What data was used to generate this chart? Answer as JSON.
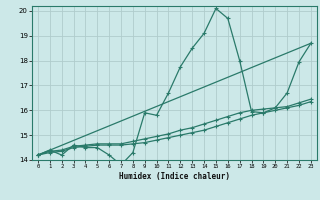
{
  "title": "",
  "xlabel": "Humidex (Indice chaleur)",
  "bg_color": "#cce8e8",
  "grid_color": "#b0cccc",
  "line_color": "#2a7a6a",
  "ylim": [
    14,
    20.2
  ],
  "xlim": [
    -0.5,
    23.5
  ],
  "yticks": [
    14,
    15,
    16,
    17,
    18,
    19,
    20
  ],
  "xticks": [
    0,
    1,
    2,
    3,
    4,
    5,
    6,
    7,
    8,
    9,
    10,
    11,
    12,
    13,
    14,
    15,
    16,
    17,
    18,
    19,
    20,
    21,
    22,
    23
  ],
  "series": [
    {
      "x": [
        0,
        1,
        2,
        3,
        4,
        5,
        6,
        7,
        8,
        9,
        10,
        11,
        12,
        13,
        14,
        15,
        16,
        17,
        18,
        19,
        20,
        21,
        22,
        23
      ],
      "y": [
        14.2,
        14.4,
        14.2,
        14.6,
        14.5,
        14.5,
        14.2,
        13.8,
        14.3,
        15.9,
        15.8,
        16.7,
        17.75,
        18.5,
        19.1,
        20.1,
        19.7,
        18.0,
        15.95,
        15.9,
        16.1,
        16.7,
        17.95,
        18.7
      ],
      "has_markers": true
    },
    {
      "x": [
        0,
        23
      ],
      "y": [
        14.2,
        18.7
      ],
      "has_markers": false
    },
    {
      "x": [
        0,
        1,
        2,
        3,
        4,
        5,
        6,
        7,
        8,
        9,
        10,
        11,
        12,
        13,
        14,
        15,
        16,
        17,
        18,
        19,
        20,
        21,
        22,
        23
      ],
      "y": [
        14.2,
        14.3,
        14.35,
        14.5,
        14.55,
        14.6,
        14.6,
        14.6,
        14.65,
        14.7,
        14.8,
        14.9,
        15.0,
        15.1,
        15.2,
        15.35,
        15.5,
        15.65,
        15.8,
        15.9,
        16.0,
        16.1,
        16.2,
        16.35
      ],
      "has_markers": true
    },
    {
      "x": [
        0,
        1,
        2,
        3,
        4,
        5,
        6,
        7,
        8,
        9,
        10,
        11,
        12,
        13,
        14,
        15,
        16,
        17,
        18,
        19,
        20,
        21,
        22,
        23
      ],
      "y": [
        14.2,
        14.35,
        14.4,
        14.55,
        14.6,
        14.65,
        14.65,
        14.65,
        14.75,
        14.85,
        14.95,
        15.05,
        15.2,
        15.3,
        15.45,
        15.6,
        15.75,
        15.9,
        16.0,
        16.05,
        16.1,
        16.15,
        16.3,
        16.45
      ],
      "has_markers": true
    }
  ]
}
